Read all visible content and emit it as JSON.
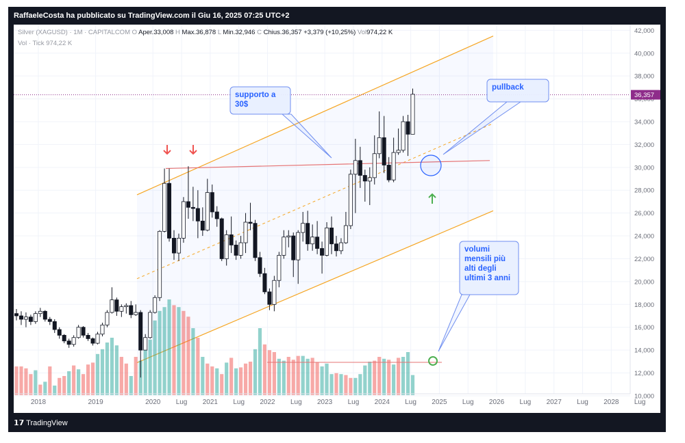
{
  "header": {
    "title": "RaffaeleCosta ha pubblicato su TradingView.com il Giu 16, 2025 07:25 UTC+2"
  },
  "legend": {
    "symbol": "Silver (XAGUSD) · 1M · CAPITALCOM",
    "open_label": "O",
    "open": "Aper.33,008",
    "high_label": "H",
    "high": "Max.36,878",
    "low_label": "L",
    "low": "Min.32,946",
    "close_label": "C",
    "close": "Chius.36,357",
    "change": "+3,379 (+10,25%)",
    "vol_label": "Vol",
    "vol": "974,22 K",
    "vol_row_label": "Vol · Tick",
    "vol_row_value": "974,22 K"
  },
  "chart_data": {
    "type": "candlestick",
    "price_axis": {
      "min": 8.5,
      "max": 42.5,
      "ticks": [
        "42,000",
        "40,000",
        "38,000",
        "36,000",
        "34,000",
        "32,000",
        "30,000",
        "28,000",
        "26,000",
        "24,000",
        "22,000",
        "20,000",
        "18,000",
        "16,000",
        "14,000",
        "12,000",
        "10,000"
      ]
    },
    "time_axis": {
      "labels": [
        "2018",
        "2019",
        "2020",
        "Lug",
        "2021",
        "Lug",
        "2022",
        "Lug",
        "2023",
        "Lug",
        "2024",
        "Lug",
        "2025",
        "Lug",
        "2026",
        "Lug",
        "2027",
        "Lug",
        "2028",
        "Lug"
      ]
    },
    "annotations": {
      "support": "supporto a 30$",
      "pullback": "pullback",
      "volume_note": "volumi mensili più alti degli ultimi 3 anni"
    },
    "colors": {
      "up": "#26a69a",
      "down": "#ef5350",
      "channel": "#f6a623",
      "support": "#e57373",
      "callout": "#2962ff"
    },
    "last_price": 36.357,
    "candles": [
      [
        17.2,
        17.6,
        16.6,
        17.0
      ],
      [
        17.0,
        17.4,
        16.2,
        16.7
      ],
      [
        16.7,
        17.3,
        16.0,
        16.9
      ],
      [
        16.9,
        17.1,
        16.2,
        16.5
      ],
      [
        16.5,
        17.4,
        16.3,
        17.2
      ],
      [
        17.2,
        17.7,
        16.9,
        17.4
      ],
      [
        17.4,
        17.5,
        16.5,
        16.7
      ],
      [
        16.7,
        16.9,
        16.2,
        16.5
      ],
      [
        16.5,
        16.7,
        15.5,
        15.8
      ],
      [
        15.8,
        16.0,
        15.0,
        15.3
      ],
      [
        15.3,
        15.4,
        14.6,
        14.8
      ],
      [
        14.8,
        15.0,
        14.2,
        14.5
      ],
      [
        14.5,
        15.3,
        14.3,
        15.1
      ],
      [
        15.1,
        16.2,
        15.0,
        16.0
      ],
      [
        16.0,
        16.1,
        15.1,
        15.3
      ],
      [
        15.3,
        15.5,
        14.8,
        15.0
      ],
      [
        15.0,
        15.1,
        14.4,
        14.6
      ],
      [
        14.6,
        15.6,
        14.5,
        15.4
      ],
      [
        15.4,
        16.4,
        15.2,
        16.2
      ],
      [
        16.2,
        17.5,
        16.0,
        17.3
      ],
      [
        17.3,
        19.5,
        17.2,
        18.4
      ],
      [
        18.4,
        18.6,
        17.0,
        17.4
      ],
      [
        17.4,
        18.0,
        16.9,
        17.8
      ],
      [
        17.8,
        18.1,
        17.2,
        17.9
      ],
      [
        17.9,
        18.3,
        16.8,
        17.1
      ],
      [
        17.1,
        18.0,
        17.0,
        17.3
      ],
      [
        17.3,
        17.5,
        11.6,
        14.0
      ],
      [
        14.0,
        15.4,
        14.0,
        15.1
      ],
      [
        15.1,
        17.5,
        15.0,
        17.3
      ],
      [
        17.3,
        18.8,
        17.2,
        18.6
      ],
      [
        18.6,
        24.5,
        18.3,
        24.4
      ],
      [
        24.4,
        29.9,
        24.3,
        28.6
      ],
      [
        28.6,
        29.9,
        23.5,
        23.8
      ],
      [
        23.8,
        24.5,
        21.9,
        22.5
      ],
      [
        22.5,
        24.2,
        21.8,
        23.8
      ],
      [
        23.8,
        27.4,
        23.4,
        27.0
      ],
      [
        27.0,
        30.1,
        25.5,
        26.5
      ],
      [
        26.5,
        28.3,
        25.3,
        26.4
      ],
      [
        26.4,
        28.0,
        23.8,
        25.3
      ],
      [
        25.3,
        26.5,
        24.0,
        24.5
      ],
      [
        24.5,
        29.0,
        24.4,
        27.8
      ],
      [
        27.8,
        28.5,
        25.6,
        26.1
      ],
      [
        26.1,
        26.6,
        24.8,
        25.5
      ],
      [
        25.5,
        25.6,
        21.8,
        22.0
      ],
      [
        22.0,
        24.5,
        21.4,
        24.1
      ],
      [
        24.1,
        25.7,
        22.5,
        23.2
      ],
      [
        23.2,
        23.6,
        21.9,
        22.3
      ],
      [
        22.3,
        24.0,
        22.0,
        23.4
      ],
      [
        23.4,
        26.0,
        22.5,
        25.2
      ],
      [
        25.2,
        26.9,
        24.5,
        25.1
      ],
      [
        25.1,
        25.4,
        21.8,
        22.1
      ],
      [
        22.1,
        22.6,
        20.4,
        20.7
      ],
      [
        20.7,
        21.2,
        18.9,
        19.1
      ],
      [
        19.1,
        19.4,
        17.5,
        18.0
      ],
      [
        18.0,
        20.5,
        17.4,
        20.1
      ],
      [
        20.1,
        22.6,
        19.5,
        22.3
      ],
      [
        22.3,
        24.5,
        22.0,
        23.9
      ],
      [
        23.9,
        24.5,
        23.0,
        24.0
      ],
      [
        24.0,
        24.3,
        20.4,
        21.9
      ],
      [
        21.9,
        24.5,
        19.8,
        24.3
      ],
      [
        24.3,
        26.1,
        23.5,
        25.1
      ],
      [
        25.1,
        26.2,
        22.7,
        23.3
      ],
      [
        23.3,
        25.0,
        22.7,
        23.9
      ],
      [
        23.9,
        25.3,
        22.4,
        22.9
      ],
      [
        22.9,
        23.5,
        20.7,
        22.3
      ],
      [
        22.3,
        25.2,
        22.2,
        24.7
      ],
      [
        24.7,
        25.7,
        22.4,
        23.3
      ],
      [
        23.3,
        24.0,
        22.2,
        22.7
      ],
      [
        22.7,
        23.8,
        22.4,
        23.4
      ],
      [
        23.4,
        26.1,
        23.3,
        24.9
      ],
      [
        24.9,
        29.8,
        24.6,
        29.4
      ],
      [
        29.4,
        32.5,
        26.0,
        30.6
      ],
      [
        30.6,
        31.8,
        28.2,
        29.3
      ],
      [
        29.3,
        29.8,
        27.0,
        28.8
      ],
      [
        28.8,
        30.0,
        26.7,
        29.1
      ],
      [
        29.1,
        32.8,
        28.5,
        31.2
      ],
      [
        31.2,
        34.9,
        30.8,
        32.6
      ],
      [
        32.6,
        34.5,
        29.5,
        30.2
      ],
      [
        30.2,
        30.9,
        28.7,
        28.9
      ],
      [
        28.9,
        32.6,
        28.7,
        31.3
      ],
      [
        31.3,
        33.4,
        31.1,
        31.5
      ],
      [
        31.5,
        34.5,
        31.3,
        34.0
      ],
      [
        34.0,
        34.6,
        31.0,
        32.9
      ],
      [
        32.9,
        36.9,
        32.9,
        36.4
      ]
    ],
    "volumes": [
      [
        30,
        0
      ],
      [
        30,
        0
      ],
      [
        28,
        0
      ],
      [
        22,
        0
      ],
      [
        26,
        1
      ],
      [
        11,
        0
      ],
      [
        14,
        1
      ],
      [
        30,
        0
      ],
      [
        10,
        1
      ],
      [
        18,
        0
      ],
      [
        20,
        0
      ],
      [
        25,
        1
      ],
      [
        31,
        0
      ],
      [
        27,
        1
      ],
      [
        22,
        0
      ],
      [
        32,
        0
      ],
      [
        34,
        0
      ],
      [
        43,
        1
      ],
      [
        48,
        1
      ],
      [
        55,
        1
      ],
      [
        60,
        1
      ],
      [
        52,
        1
      ],
      [
        40,
        0
      ],
      [
        33,
        0
      ],
      [
        20,
        1
      ],
      [
        40,
        0
      ],
      [
        36,
        1
      ],
      [
        48,
        1
      ],
      [
        58,
        1
      ],
      [
        78,
        1
      ],
      [
        88,
        1
      ],
      [
        92,
        1
      ],
      [
        100,
        1
      ],
      [
        94,
        0
      ],
      [
        92,
        1
      ],
      [
        88,
        0
      ],
      [
        82,
        0
      ],
      [
        70,
        1
      ],
      [
        60,
        0
      ],
      [
        40,
        1
      ],
      [
        33,
        0
      ],
      [
        30,
        0
      ],
      [
        28,
        1
      ],
      [
        22,
        0
      ],
      [
        34,
        1
      ],
      [
        39,
        0
      ],
      [
        28,
        1
      ],
      [
        29,
        0
      ],
      [
        33,
        0
      ],
      [
        35,
        0
      ],
      [
        48,
        1
      ],
      [
        70,
        1
      ],
      [
        53,
        0
      ],
      [
        47,
        0
      ],
      [
        45,
        0
      ],
      [
        38,
        1
      ],
      [
        36,
        1
      ],
      [
        40,
        0
      ],
      [
        37,
        0
      ],
      [
        41,
        0
      ],
      [
        41,
        1
      ],
      [
        38,
        1
      ],
      [
        39,
        0
      ],
      [
        34,
        0
      ],
      [
        30,
        1
      ],
      [
        33,
        1
      ],
      [
        22,
        1
      ],
      [
        23,
        0
      ],
      [
        22,
        1
      ],
      [
        21,
        0
      ],
      [
        18,
        0
      ],
      [
        18,
        1
      ],
      [
        22,
        1
      ],
      [
        31,
        1
      ],
      [
        35,
        1
      ],
      [
        36,
        0
      ],
      [
        40,
        0
      ],
      [
        38,
        1
      ],
      [
        37,
        0
      ],
      [
        32,
        1
      ],
      [
        39,
        0
      ],
      [
        40,
        1
      ],
      [
        45,
        1
      ],
      [
        21,
        1
      ]
    ]
  }
}
